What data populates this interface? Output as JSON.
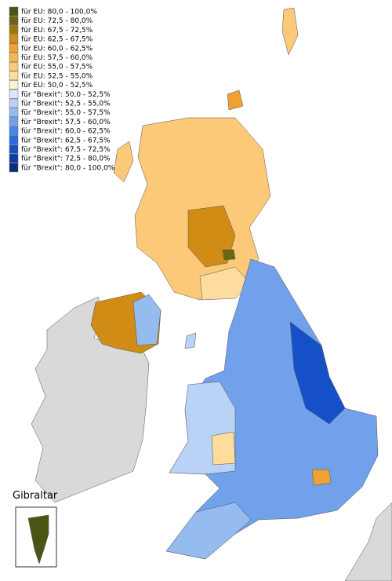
{
  "legend": {
    "items": [
      {
        "label": "für EU: 80,0 - 100,0%",
        "color": "#4b5412"
      },
      {
        "label": "für EU: 72,5 - 80,0%",
        "color": "#6e6512"
      },
      {
        "label": "für EU: 67,5 - 72,5%",
        "color": "#a37608"
      },
      {
        "label": "für EU: 62,5 - 67,5%",
        "color": "#d08c14"
      },
      {
        "label": "für EU: 60,0 - 62,5%",
        "color": "#eea232"
      },
      {
        "label": "für EU: 57,5 - 60,0%",
        "color": "#f7b653"
      },
      {
        "label": "für EU: 55,0 - 57,5%",
        "color": "#fbc977"
      },
      {
        "label": "für EU: 52,5 - 55,0%",
        "color": "#fddc9d"
      },
      {
        "label": "für EU: 50,0 - 52,5%",
        "color": "#fff1cf"
      },
      {
        "label": "für \"Brexit\": 50,0 - 52,5%",
        "color": "#dce8fa"
      },
      {
        "label": "für \"Brexit\": 52,5 - 55,0%",
        "color": "#b9d2f5"
      },
      {
        "label": "für \"Brexit\": 55,0 - 57,5%",
        "color": "#95bbef"
      },
      {
        "label": "für \"Brexit\": 57,5 - 60,0%",
        "color": "#70a1ea"
      },
      {
        "label": "für \"Brexit\": 60,0 - 62,5%",
        "color": "#4a86e6"
      },
      {
        "label": "für \"Brexit\": 62,5 - 67,5%",
        "color": "#2a6ae0"
      },
      {
        "label": "für \"Brexit\": 67,5 - 72,5%",
        "color": "#1650c8"
      },
      {
        "label": "für \"Brexit\": 72,5 - 80,0%",
        "color": "#0d3ea0"
      },
      {
        "label": "für \"Brexit\": 80,0 - 100,0%",
        "color": "#0a2e78"
      }
    ]
  },
  "inset": {
    "label": "Gibraltar"
  }
}
